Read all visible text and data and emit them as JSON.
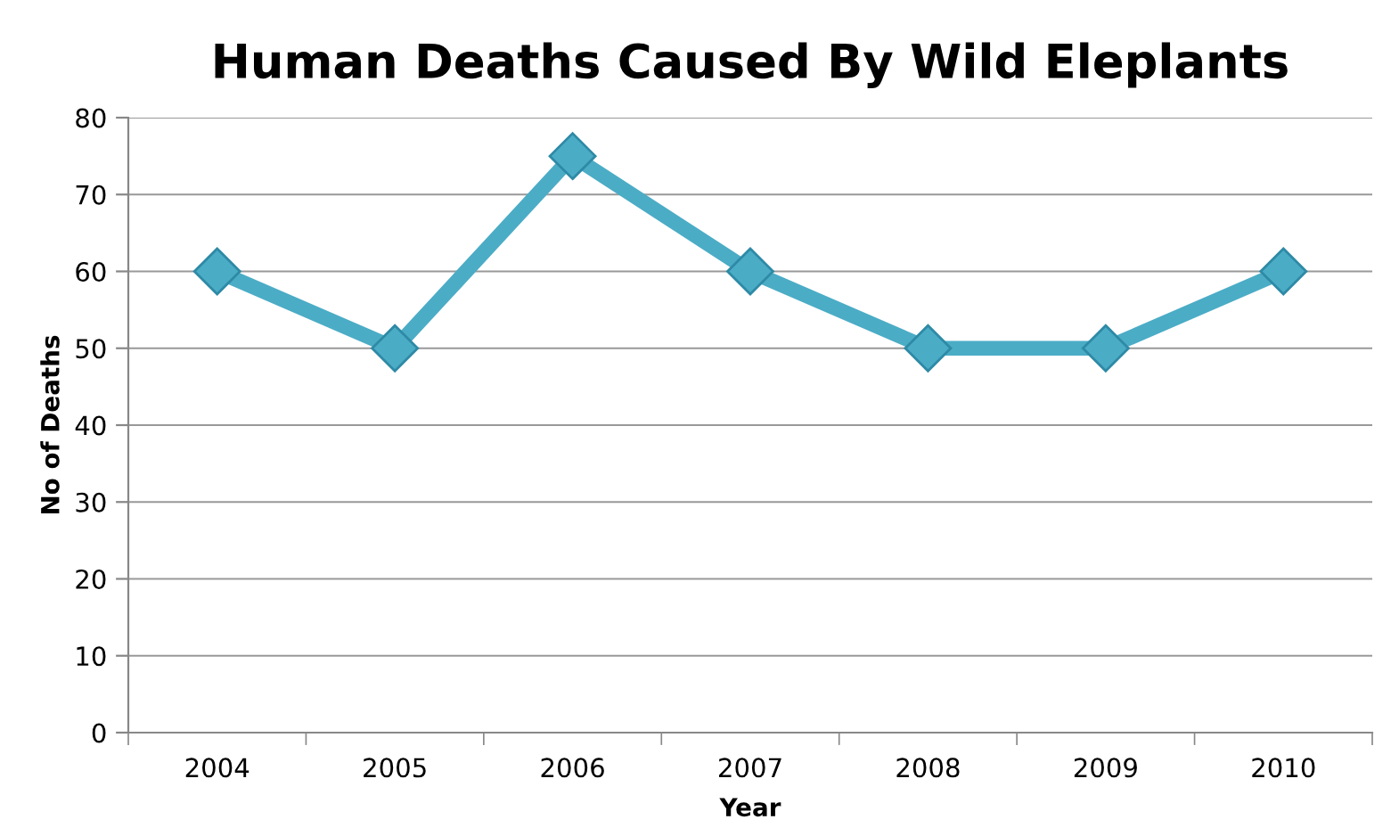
{
  "chart_data": {
    "type": "line",
    "title": "Human Deaths Caused By Wild Eleplants",
    "xlabel": "Year",
    "ylabel": "No of Deaths",
    "categories": [
      "2004",
      "2005",
      "2006",
      "2007",
      "2008",
      "2009",
      "2010"
    ],
    "series": [
      {
        "color": "#4bacc6",
        "values": [
          60,
          50,
          75,
          60,
          50,
          50,
          60
        ]
      }
    ],
    "ylim": [
      0,
      80
    ],
    "yticks": [
      0,
      10,
      20,
      30,
      40,
      50,
      60,
      70,
      80
    ],
    "grid": "y",
    "marker": "diamond",
    "line_style": "solid"
  }
}
